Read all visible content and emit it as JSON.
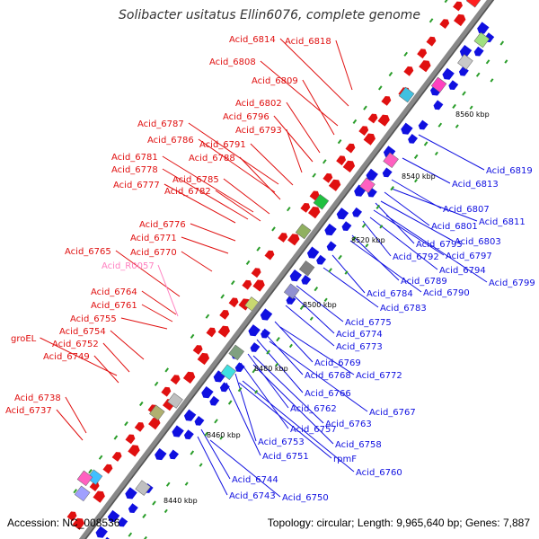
{
  "title": "Solibacter usitatus Ellin6076, complete genome",
  "footer": {
    "accession": "Accession: NC_008536",
    "topology": "Topology: circular; Length: 9,965,640 bp; Genes: 7,887"
  },
  "colors": {
    "forward": "#e01010",
    "reverse": "#1010e0",
    "rna": "#ff80c0",
    "backbone": "#888888"
  },
  "ticks": [
    "8440 kbp",
    "8460 kbp",
    "8480 kbp",
    "8500 kbp",
    "8520 kbp",
    "8540 kbp",
    "8560 kbp"
  ],
  "labels": {
    "forward": [
      "Acid_6818",
      "Acid_6814",
      "Acid_6808",
      "Acid_6809",
      "Acid_6802",
      "Acid_6796",
      "Acid_6787",
      "Acid_6793",
      "Acid_6786",
      "Acid_6791",
      "Acid_6788",
      "Acid_6781",
      "Acid_6778",
      "Acid_6785",
      "Acid_6777",
      "Acid_6782",
      "Acid_6776",
      "Acid_6771",
      "Acid_6770",
      "Acid_6765",
      "Acid_6764",
      "Acid_6761",
      "Acid_6755",
      "groEL",
      "Acid_6754",
      "Acid_6752",
      "Acid_6749",
      "Acid_6738",
      "Acid_6737"
    ],
    "rna": [
      "Acid_R0057"
    ],
    "reverse": [
      "Acid_6819",
      "Acid_6813",
      "Acid_6807",
      "Acid_6811",
      "Acid_6801",
      "Acid_6803",
      "Acid_6795",
      "Acid_6797",
      "Acid_6792",
      "Acid_6794",
      "Acid_6799",
      "Acid_6789",
      "Acid_6790",
      "Acid_6784",
      "Acid_6783",
      "Acid_6775",
      "Acid_6774",
      "Acid_6773",
      "Acid_6769",
      "Acid_6768",
      "Acid_6772",
      "Acid_6766",
      "Acid_6767",
      "Acid_6762",
      "Acid_6763",
      "Acid_6757",
      "Acid_6758",
      "Acid_6753",
      "rpmF",
      "Acid_6751",
      "Acid_6760",
      "Acid_6744",
      "Acid_6743",
      "Acid_6750"
    ]
  }
}
